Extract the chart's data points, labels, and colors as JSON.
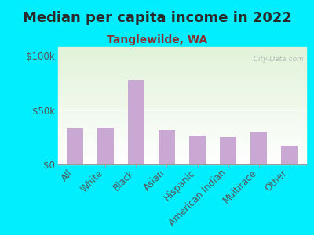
{
  "title": "Median per capita income in 2022",
  "subtitle": "Tanglewilde, WA",
  "categories": [
    "All",
    "White",
    "Black",
    "Asian",
    "Hispanic",
    "American Indian",
    "Multirace",
    "Other"
  ],
  "values": [
    33000,
    34000,
    78000,
    32000,
    27000,
    25000,
    30000,
    17000
  ],
  "bar_color": "#c9a8d4",
  "background_outer": "#00eeff",
  "title_color": "#2a2a2a",
  "subtitle_color": "#8b3030",
  "tick_color": "#555555",
  "ytick_labels": [
    "$0",
    "$50k",
    "$100k"
  ],
  "ytick_values": [
    0,
    50000,
    100000
  ],
  "ylim": [
    0,
    108000
  ],
  "watermark": "  City-Data.com",
  "title_fontsize": 13,
  "subtitle_fontsize": 10,
  "tick_fontsize": 8.5,
  "bar_width": 0.55
}
